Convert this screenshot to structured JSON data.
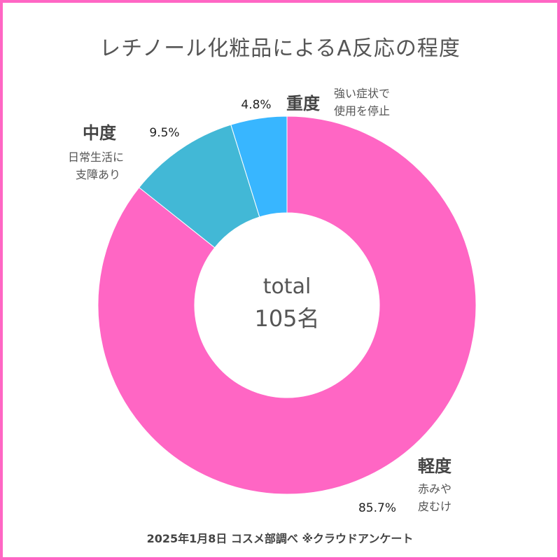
{
  "title": "レチノール化粧品によるA反応の程度",
  "center": {
    "line1": "total",
    "line2": "105名"
  },
  "footer": "2025年1月8日 コスメ部調べ ※クラウドアンケート",
  "colors": {
    "border": "#ff66c4",
    "mild": "#ff66c4",
    "moderate": "#42b8d6",
    "severe": "#38b6ff"
  },
  "chart_data": {
    "type": "pie",
    "variant": "donut",
    "total": 105,
    "unit": "名",
    "slices": [
      {
        "key": "mild",
        "label": "軽度",
        "desc_lines": [
          "赤みや",
          "皮むけ"
        ],
        "percent": 85.7,
        "percent_label": "85.7%",
        "color": "#ff66c4"
      },
      {
        "key": "moderate",
        "label": "中度",
        "desc_lines": [
          "日常生活に",
          "支障あり"
        ],
        "percent": 9.5,
        "percent_label": "9.5%",
        "color": "#42b8d6"
      },
      {
        "key": "severe",
        "label": "重度",
        "desc_lines": [
          "強い症状で",
          "使用を停止"
        ],
        "percent": 4.8,
        "percent_label": "4.8%",
        "color": "#38b6ff"
      }
    ]
  }
}
